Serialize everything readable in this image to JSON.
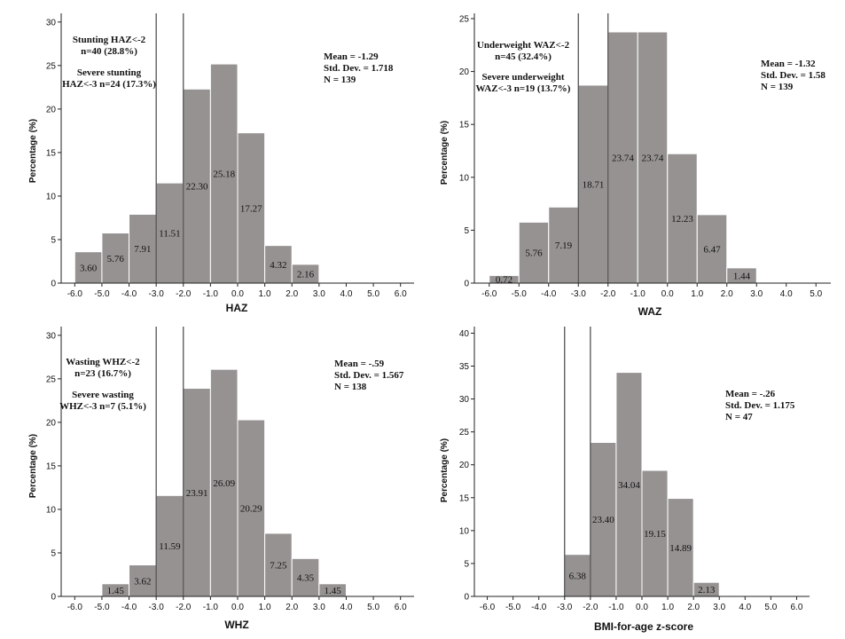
{
  "colors": {
    "bar_fill": "#969292",
    "bar_stroke": "#ffffff",
    "axis": "#222222",
    "cutoff": "#444444"
  },
  "chart_data": [
    {
      "type": "bar",
      "title": "",
      "xlabel": "HAZ",
      "ylabel": "Percentage (%)",
      "xlim": [
        -6.5,
        6.5
      ],
      "ylim": [
        0,
        31
      ],
      "yticks": [
        0,
        5,
        10,
        15,
        20,
        25,
        30
      ],
      "xticks": [
        "-6.0",
        "-5.0",
        "-4.0",
        "-3.0",
        "-2.0",
        "-1.0",
        "0.0",
        "1.0",
        "2.0",
        "3.0",
        "4.0",
        "5.0",
        "6.0"
      ],
      "bins": [
        [
          -6,
          -5
        ],
        [
          -5,
          -4
        ],
        [
          -4,
          -3
        ],
        [
          -3,
          -2
        ],
        [
          -2,
          -1
        ],
        [
          -1,
          0
        ],
        [
          0,
          1
        ],
        [
          1,
          2
        ],
        [
          2,
          3
        ]
      ],
      "values": [
        3.6,
        5.76,
        7.91,
        11.51,
        22.3,
        25.18,
        17.27,
        4.32,
        2.16
      ],
      "data_labels": [
        "3.60",
        "5.76",
        "7.91",
        "11.51",
        "22.30",
        "25.18",
        "17.27",
        "4.32",
        "2.16"
      ],
      "cutoffs": [
        -3,
        -2
      ],
      "stats": [
        "Mean = -1.29",
        "Std. Dev. = 1.718",
        "N = 139"
      ],
      "annotations": [
        "Stunting HAZ<-2",
        "n=40 (28.8%)",
        "Severe stunting",
        "HAZ<-3 n=24 (17.3%)"
      ]
    },
    {
      "type": "bar",
      "title": "",
      "xlabel": "WAZ",
      "ylabel": "Percentage (%)",
      "xlim": [
        -6.5,
        5.5
      ],
      "ylim": [
        0,
        25.5
      ],
      "yticks": [
        0,
        5,
        10,
        15,
        20,
        25
      ],
      "xticks": [
        "-6.0",
        "-5.0",
        "-4.0",
        "-3.0",
        "-2.0",
        "-1.0",
        "0.0",
        "1.0",
        "2.0",
        "3.0",
        "4.0",
        "5.0"
      ],
      "bins": [
        [
          -6,
          -5
        ],
        [
          -5,
          -4
        ],
        [
          -4,
          -3
        ],
        [
          -3,
          -2
        ],
        [
          -2,
          -1
        ],
        [
          -1,
          0
        ],
        [
          0,
          1
        ],
        [
          1,
          2
        ],
        [
          2,
          3
        ]
      ],
      "values": [
        0.72,
        5.76,
        7.19,
        18.71,
        23.74,
        23.74,
        12.23,
        6.47,
        1.44
      ],
      "data_labels": [
        "0.72",
        "5.76",
        "7.19",
        "18.71",
        "23.74",
        "23.74",
        "12.23",
        "6.47",
        "1.44"
      ],
      "cutoffs": [
        -3,
        -2
      ],
      "stats": [
        "Mean = -1.32",
        "Std. Dev. = 1.58",
        "N = 139"
      ],
      "annotations": [
        "Underweight WAZ<-2",
        "n=45 (32.4%)",
        "Severe underweight",
        "WAZ<-3 n=19 (13.7%)"
      ]
    },
    {
      "type": "bar",
      "title": "",
      "xlabel": "WHZ",
      "ylabel": "Percentage (%)",
      "xlim": [
        -6.5,
        6.5
      ],
      "ylim": [
        0,
        31
      ],
      "yticks": [
        0,
        5,
        10,
        15,
        20,
        25,
        30
      ],
      "xticks": [
        "-6.0",
        "-5.0",
        "-4.0",
        "-3.0",
        "-2.0",
        "-1.0",
        "0.0",
        "1.0",
        "2.0",
        "3.0",
        "4.0",
        "5.0",
        "6.0"
      ],
      "bins": [
        [
          -5,
          -4
        ],
        [
          -4,
          -3
        ],
        [
          -3,
          -2
        ],
        [
          -2,
          -1
        ],
        [
          -1,
          0
        ],
        [
          0,
          1
        ],
        [
          1,
          2
        ],
        [
          2,
          3
        ],
        [
          3,
          4
        ]
      ],
      "values": [
        1.45,
        3.62,
        11.59,
        23.91,
        26.09,
        20.29,
        7.25,
        4.35,
        1.45
      ],
      "data_labels": [
        "1.45",
        "3.62",
        "11.59",
        "23.91",
        "26.09",
        "20.29",
        "7.25",
        "4.35",
        "1.45"
      ],
      "cutoffs": [
        -3,
        -2
      ],
      "stats": [
        "Mean = -.59",
        "Std. Dev. = 1.567",
        "N = 138"
      ],
      "annotations": [
        "Wasting WHZ<-2",
        "n=23 (16.7%)",
        "Severe wasting",
        "WHZ<-3 n=7 (5.1%)"
      ]
    },
    {
      "type": "bar",
      "title": "",
      "xlabel": "BMI-for-age z-score",
      "ylabel": "Percentage (%)",
      "xlim": [
        -6.5,
        6.5
      ],
      "ylim": [
        0,
        41
      ],
      "yticks": [
        0,
        5,
        10,
        15,
        20,
        25,
        30,
        35,
        40
      ],
      "xticks": [
        "-6.0",
        "-5.0",
        "-4.0",
        "-3.0",
        "-2.0",
        "-1.0",
        "0.0",
        "1.0",
        "2.0",
        "3.0",
        "4.0",
        "5.0",
        "6.0"
      ],
      "bins": [
        [
          -3,
          -2
        ],
        [
          -2,
          -1
        ],
        [
          -1,
          0
        ],
        [
          0,
          1
        ],
        [
          1,
          2
        ],
        [
          2,
          3
        ]
      ],
      "values": [
        6.38,
        23.4,
        34.04,
        19.15,
        14.89,
        2.13
      ],
      "data_labels": [
        "6.38",
        "23.40",
        "34.04",
        "19.15",
        "14.89",
        "2.13"
      ],
      "cutoffs": [
        -3,
        -2
      ],
      "stats": [
        "Mean = -.26",
        "Std. Dev. = 1.175",
        "N = 47"
      ],
      "annotations": []
    }
  ]
}
